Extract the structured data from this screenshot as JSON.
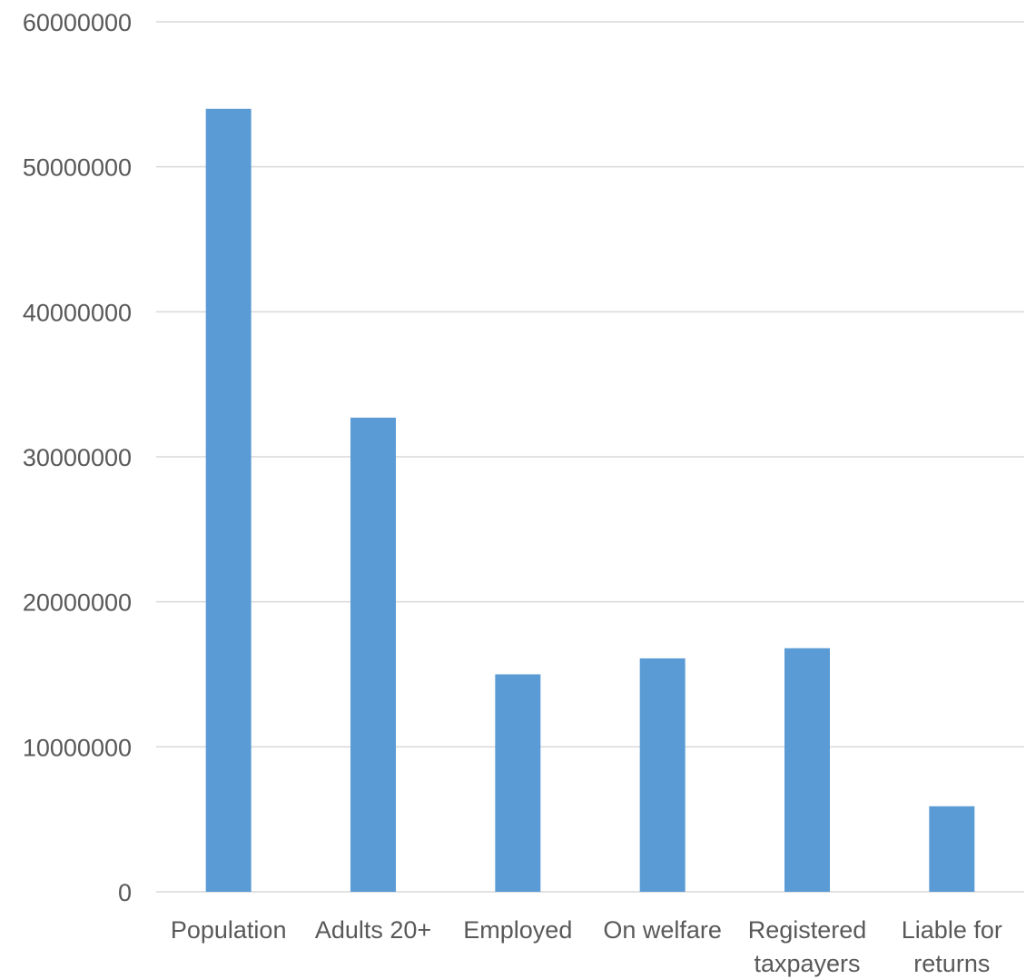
{
  "chart_data": {
    "type": "bar",
    "categories": [
      [
        "Population"
      ],
      [
        "Adults  20+"
      ],
      [
        "Employed"
      ],
      [
        "On welfare"
      ],
      [
        "Registered",
        "taxpayers"
      ],
      [
        "Liable for",
        "returns"
      ]
    ],
    "values": [
      54000000,
      32700000,
      15000000,
      16100000,
      16800000,
      5900000
    ],
    "ylim": [
      0,
      60000000
    ],
    "yticks": [
      0,
      10000000,
      20000000,
      30000000,
      40000000,
      50000000,
      60000000
    ],
    "grid": true,
    "title": "",
    "xlabel": "",
    "ylabel": "",
    "colors": {
      "bar": "#5b9bd5",
      "grid": "#d9d9d9",
      "text": "#595959"
    }
  }
}
